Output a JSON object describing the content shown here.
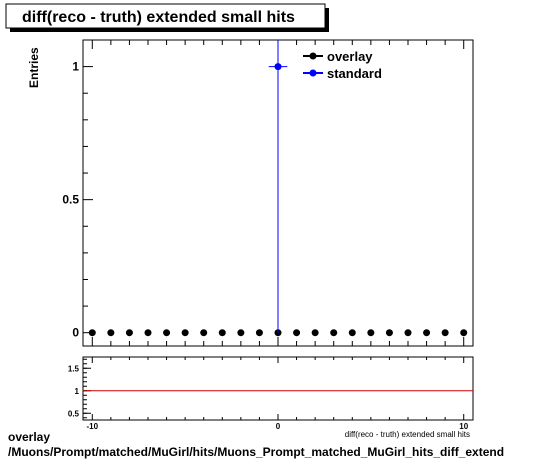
{
  "title": "diff(reco - truth) extended small hits",
  "chart_data": [
    {
      "type": "scatter",
      "title": "diff(reco - truth) extended small hits",
      "xlabel": "diff(reco - truth) extended small hits",
      "ylabel": "Entries",
      "xlim": [
        -10.5,
        10.5
      ],
      "ylim": [
        -0.05,
        1.1
      ],
      "x_ticks": [
        "-10",
        "0",
        "10"
      ],
      "y_ticks": [
        "0",
        "0.5",
        "1"
      ],
      "legend_position": "top-right",
      "series": [
        {
          "name": "overlay",
          "color": "#000000",
          "x": [
            -10,
            -9,
            -8,
            -7,
            -6,
            -5,
            -4,
            -3,
            -2,
            -1,
            0,
            1,
            2,
            3,
            4,
            5,
            6,
            7,
            8,
            9,
            10
          ],
          "y": [
            0,
            0,
            0,
            0,
            0,
            0,
            0,
            0,
            0,
            0,
            0,
            0,
            0,
            0,
            0,
            0,
            0,
            0,
            0,
            0,
            0
          ]
        },
        {
          "name": "standard",
          "color": "#0000ff",
          "x": [
            0
          ],
          "y": [
            1
          ],
          "yerr": [
            1
          ],
          "xerr": [
            0.5
          ]
        }
      ]
    },
    {
      "type": "line",
      "title": "",
      "xlabel": "",
      "ylabel": "",
      "xlim": [
        -10.5,
        10.5
      ],
      "ylim": [
        0.35,
        1.75
      ],
      "x_ticks": [
        "-10",
        "0",
        "10"
      ],
      "y_ticks": [
        "0.5",
        "1",
        "1.5"
      ],
      "reference_line": {
        "y": 1,
        "color": "#cc0000"
      }
    }
  ],
  "footer": {
    "line1": "overlay",
    "line2": "/Muons/Prompt/matched/MuGirl/hits/Muons_Prompt_matched_MuGirl_hits_diff_extend"
  }
}
